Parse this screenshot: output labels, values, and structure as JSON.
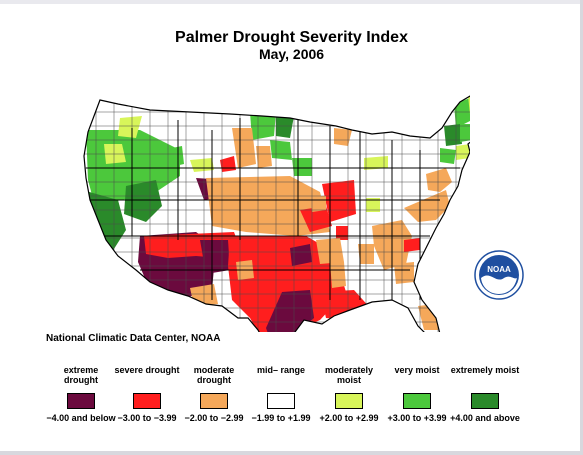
{
  "title": "Palmer Drought Severity Index",
  "subtitle": "May, 2006",
  "source": "National Climatic Data Center, NOAA",
  "logo_text": "NOAA",
  "legend": [
    {
      "label": "extreme drought",
      "range": "−4.00 and below",
      "color": "#6b0a3e"
    },
    {
      "label": "severe drought",
      "range": "−3.00 to −3.99",
      "color": "#ff1e1e"
    },
    {
      "label": "moderate drought",
      "range": "−2.00 to −2.99",
      "color": "#f5a85a"
    },
    {
      "label": "mid– range",
      "range": "−1.99 to +1.99",
      "color": "#ffffff"
    },
    {
      "label": "moderately moist",
      "range": "+2.00 to +2.99",
      "color": "#d8f55a"
    },
    {
      "label": "very moist",
      "range": "+3.00 to +3.99",
      "color": "#4cc83c"
    },
    {
      "label": "extremely moist",
      "range": "+4.00 and above",
      "color": "#2a8a2a"
    }
  ]
}
